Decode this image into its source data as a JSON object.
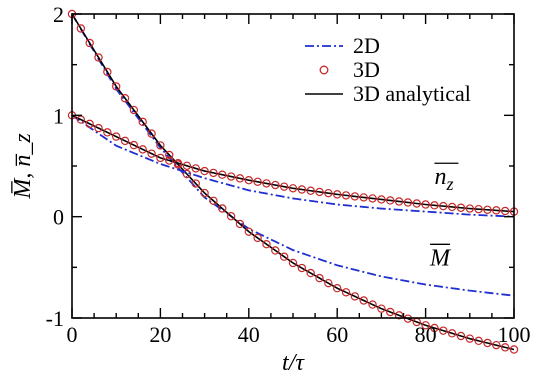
{
  "chart_data": {
    "type": "line",
    "title": "",
    "xlabel": "t/τ",
    "ylabel": "M̅, n̅_z",
    "xlim": [
      0,
      100
    ],
    "ylim": [
      -1,
      2
    ],
    "x_ticks": [
      0,
      20,
      40,
      60,
      80,
      100
    ],
    "y_ticks": [
      -1,
      0,
      1,
      2
    ],
    "grid": false,
    "legend_position": "top-right",
    "legend": [
      {
        "label": "2D",
        "style": "dash-dot",
        "color": "#1f2fd0"
      },
      {
        "label": "3D",
        "style": "open-circle",
        "color": "#c8282a"
      },
      {
        "label": "3D analytical",
        "style": "solid",
        "color": "#000000"
      }
    ],
    "annotations": [
      {
        "text": "n",
        "subscript": "z",
        "overbar": true,
        "near_series": "n_z",
        "at": [
          82,
          0.32
        ]
      },
      {
        "text": "M",
        "subscript": "",
        "overbar": true,
        "near_series": "M",
        "at": [
          81,
          -0.48
        ]
      }
    ],
    "series": [
      {
        "key": "M",
        "x": [
          0,
          10,
          20,
          30,
          40,
          50,
          60,
          70,
          80,
          90,
          100
        ],
        "analytical_3d": [
          2.0,
          1.285,
          0.703,
          0.233,
          -0.148,
          -0.457,
          -0.706,
          -0.908,
          -1.072,
          -1.204,
          -1.311
        ],
        "d2": [
          2.0,
          1.26,
          0.68,
          0.19,
          -0.12,
          -0.33,
          -0.48,
          -0.59,
          -0.67,
          -0.73,
          -0.78
        ],
        "marker_step": 2
      },
      {
        "key": "n_z",
        "x": [
          0,
          10,
          20,
          30,
          40,
          50,
          60,
          70,
          80,
          90,
          100
        ],
        "analytical_3d": [
          1.0,
          0.79,
          0.58,
          0.45,
          0.36,
          0.28,
          0.22,
          0.17,
          0.12,
          0.08,
          0.05
        ],
        "d2": [
          1.0,
          0.7,
          0.52,
          0.38,
          0.26,
          0.18,
          0.12,
          0.08,
          0.05,
          0.02,
          0.0
        ],
        "marker_step": 2
      }
    ]
  },
  "colors": {
    "series_2d": "#1f2fd0",
    "series_3d": "#c8282a",
    "analytical": "#000000"
  }
}
